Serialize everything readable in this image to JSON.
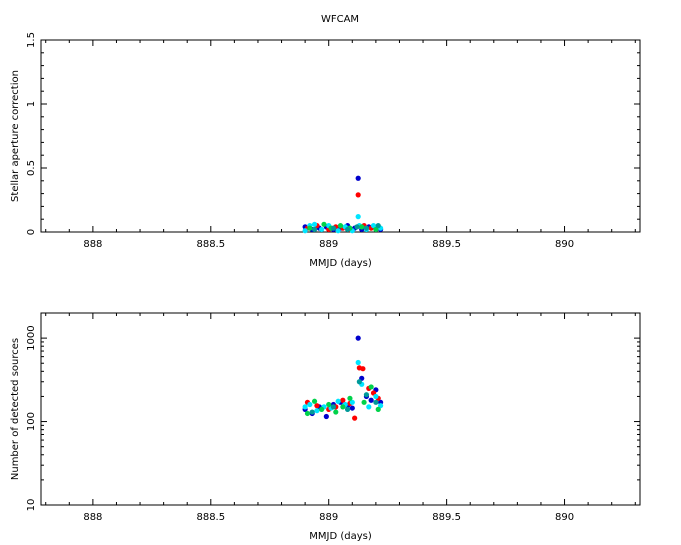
{
  "title": "WFCAM",
  "colors": {
    "blue": "#0000cc",
    "red": "#ff0000",
    "cyan": "#00e5ff",
    "green": "#00d24a",
    "teal": "#009999"
  },
  "chart_data": [
    {
      "type": "scatter",
      "xlabel": "MMJD (days)",
      "ylabel": "Stellar aperture correction",
      "xlim": [
        887.78,
        890.32
      ],
      "ylim": [
        0,
        1.5
      ],
      "xticks": [
        888,
        888.5,
        889,
        889.5,
        890
      ],
      "xtick_labels": [
        "888",
        "888.5",
        "889",
        "889.5",
        "890"
      ],
      "yticks": [
        0,
        0.5,
        1,
        1.5
      ],
      "ytick_labels": [
        "0",
        "0.5",
        "1",
        "1.5"
      ],
      "log_y": false,
      "grid": false,
      "series": [
        {
          "color": "#0000cc",
          "points": [
            [
              888.9,
              0.04
            ],
            [
              888.93,
              0.02
            ],
            [
              888.96,
              0.03
            ],
            [
              888.99,
              0.04
            ],
            [
              889.02,
              0.02
            ],
            [
              889.05,
              0.03
            ],
            [
              889.08,
              0.05
            ],
            [
              889.11,
              0.03
            ],
            [
              889.125,
              0.42
            ],
            [
              889.14,
              0.02
            ],
            [
              889.17,
              0.04
            ],
            [
              889.2,
              0.03
            ],
            [
              889.22,
              0.02
            ]
          ]
        },
        {
          "color": "#ff0000",
          "points": [
            [
              888.91,
              0.03
            ],
            [
              888.95,
              0.05
            ],
            [
              889.0,
              0.02
            ],
            [
              889.03,
              0.04
            ],
            [
              889.06,
              0.03
            ],
            [
              889.09,
              0.02
            ],
            [
              889.125,
              0.29
            ],
            [
              889.15,
              0.05
            ],
            [
              889.18,
              0.03
            ],
            [
              889.21,
              0.04
            ]
          ]
        },
        {
          "color": "#00e5ff",
          "points": [
            [
              888.9,
              0.01
            ],
            [
              888.92,
              0.05
            ],
            [
              888.94,
              0.06
            ],
            [
              888.97,
              0.02
            ],
            [
              889.0,
              0.05
            ],
            [
              889.04,
              0.01
            ],
            [
              889.07,
              0.04
            ],
            [
              889.1,
              0.01
            ],
            [
              889.125,
              0.12
            ],
            [
              889.13,
              0.05
            ],
            [
              889.16,
              0.02
            ],
            [
              889.19,
              0.05
            ],
            [
              889.22,
              0.03
            ]
          ]
        },
        {
          "color": "#00d24a",
          "points": [
            [
              888.92,
              0.03
            ],
            [
              888.98,
              0.06
            ],
            [
              889.01,
              0.03
            ],
            [
              889.05,
              0.05
            ],
            [
              889.09,
              0.03
            ],
            [
              889.14,
              0.04
            ],
            [
              889.2,
              0.02
            ]
          ]
        },
        {
          "color": "#009999",
          "points": [
            [
              888.94,
              0.02
            ],
            [
              889.02,
              0.03
            ],
            [
              889.08,
              0.02
            ],
            [
              889.12,
              0.04
            ],
            [
              889.16,
              0.03
            ],
            [
              889.21,
              0.05
            ]
          ]
        }
      ]
    },
    {
      "type": "scatter",
      "xlabel": "MMJD (days)",
      "ylabel": "Number of detected sources",
      "xlim": [
        887.78,
        890.32
      ],
      "ylim": [
        10,
        2000
      ],
      "xticks": [
        888,
        888.5,
        889,
        889.5,
        890
      ],
      "xtick_labels": [
        "888",
        "888.5",
        "889",
        "889.5",
        "890"
      ],
      "yticks": [
        10,
        100,
        1000
      ],
      "ytick_labels": [
        "10",
        "100",
        "1000"
      ],
      "log_y": true,
      "grid": false,
      "series": [
        {
          "color": "#0000cc",
          "points": [
            [
              888.9,
              140
            ],
            [
              888.93,
              125
            ],
            [
              888.96,
              150
            ],
            [
              888.99,
              115
            ],
            [
              889.02,
              160
            ],
            [
              889.05,
              170
            ],
            [
              889.08,
              155
            ],
            [
              889.1,
              145
            ],
            [
              889.125,
              1000
            ],
            [
              889.14,
              330
            ],
            [
              889.16,
              200
            ],
            [
              889.18,
              180
            ],
            [
              889.2,
              240
            ],
            [
              889.22,
              170
            ]
          ]
        },
        {
          "color": "#ff0000",
          "points": [
            [
              888.91,
              170
            ],
            [
              888.95,
              155
            ],
            [
              889.0,
              140
            ],
            [
              889.03,
              150
            ],
            [
              889.06,
              180
            ],
            [
              889.09,
              165
            ],
            [
              889.11,
              110
            ],
            [
              889.13,
              440
            ],
            [
              889.145,
              430
            ],
            [
              889.17,
              250
            ],
            [
              889.19,
              220
            ],
            [
              889.21,
              190
            ]
          ]
        },
        {
          "color": "#00e5ff",
          "points": [
            [
              888.9,
              150
            ],
            [
              888.92,
              160
            ],
            [
              888.95,
              135
            ],
            [
              888.98,
              150
            ],
            [
              889.01,
              145
            ],
            [
              889.04,
              175
            ],
            [
              889.07,
              160
            ],
            [
              889.1,
              170
            ],
            [
              889.125,
              510
            ],
            [
              889.14,
              280
            ],
            [
              889.17,
              150
            ],
            [
              889.2,
              200
            ],
            [
              889.22,
              155
            ]
          ]
        },
        {
          "color": "#00d24a",
          "points": [
            [
              888.91,
              125
            ],
            [
              888.94,
              175
            ],
            [
              888.97,
              140
            ],
            [
              889.0,
              160
            ],
            [
              889.03,
              130
            ],
            [
              889.06,
              150
            ],
            [
              889.09,
              190
            ],
            [
              889.15,
              170
            ],
            [
              889.18,
              260
            ],
            [
              889.21,
              140
            ]
          ]
        },
        {
          "color": "#009999",
          "points": [
            [
              888.93,
              130
            ],
            [
              889.02,
              150
            ],
            [
              889.08,
              140
            ],
            [
              889.13,
              300
            ],
            [
              889.16,
              210
            ],
            [
              889.2,
              170
            ]
          ]
        }
      ]
    }
  ]
}
